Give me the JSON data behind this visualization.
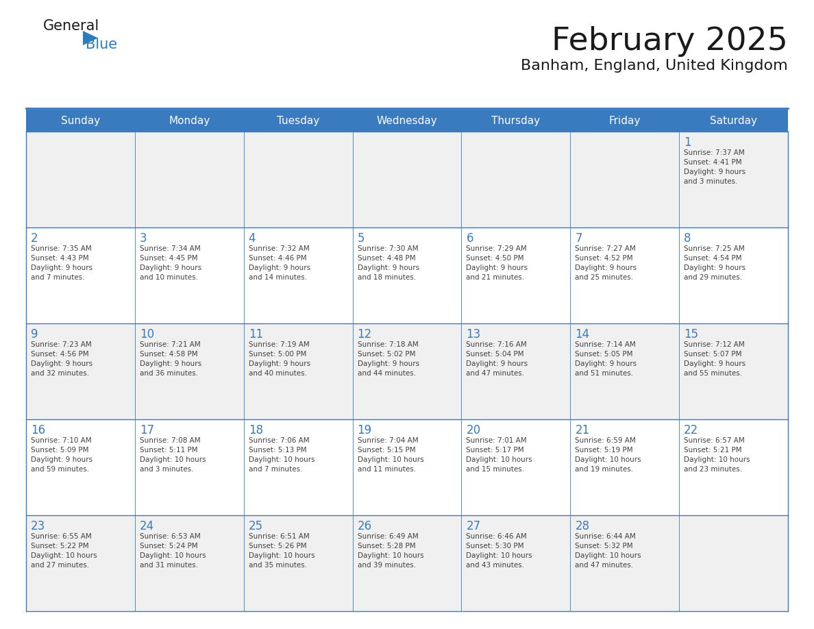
{
  "title": "February 2025",
  "subtitle": "Banham, England, United Kingdom",
  "header_bg": "#3a7abf",
  "header_text": "#ffffff",
  "cell_bg_odd": "#f0f0f0",
  "cell_bg_even": "#ffffff",
  "day_number_color": "#3a7abf",
  "cell_text_color": "#404040",
  "grid_line_color": "#3a7abf",
  "logo_text_color": "#1a1a1a",
  "logo_blue_color": "#2a7dbf",
  "days_of_week": [
    "Sunday",
    "Monday",
    "Tuesday",
    "Wednesday",
    "Thursday",
    "Friday",
    "Saturday"
  ],
  "weeks": [
    [
      {
        "day": null,
        "info": null
      },
      {
        "day": null,
        "info": null
      },
      {
        "day": null,
        "info": null
      },
      {
        "day": null,
        "info": null
      },
      {
        "day": null,
        "info": null
      },
      {
        "day": null,
        "info": null
      },
      {
        "day": 1,
        "info": "Sunrise: 7:37 AM\nSunset: 4:41 PM\nDaylight: 9 hours\nand 3 minutes."
      }
    ],
    [
      {
        "day": 2,
        "info": "Sunrise: 7:35 AM\nSunset: 4:43 PM\nDaylight: 9 hours\nand 7 minutes."
      },
      {
        "day": 3,
        "info": "Sunrise: 7:34 AM\nSunset: 4:45 PM\nDaylight: 9 hours\nand 10 minutes."
      },
      {
        "day": 4,
        "info": "Sunrise: 7:32 AM\nSunset: 4:46 PM\nDaylight: 9 hours\nand 14 minutes."
      },
      {
        "day": 5,
        "info": "Sunrise: 7:30 AM\nSunset: 4:48 PM\nDaylight: 9 hours\nand 18 minutes."
      },
      {
        "day": 6,
        "info": "Sunrise: 7:29 AM\nSunset: 4:50 PM\nDaylight: 9 hours\nand 21 minutes."
      },
      {
        "day": 7,
        "info": "Sunrise: 7:27 AM\nSunset: 4:52 PM\nDaylight: 9 hours\nand 25 minutes."
      },
      {
        "day": 8,
        "info": "Sunrise: 7:25 AM\nSunset: 4:54 PM\nDaylight: 9 hours\nand 29 minutes."
      }
    ],
    [
      {
        "day": 9,
        "info": "Sunrise: 7:23 AM\nSunset: 4:56 PM\nDaylight: 9 hours\nand 32 minutes."
      },
      {
        "day": 10,
        "info": "Sunrise: 7:21 AM\nSunset: 4:58 PM\nDaylight: 9 hours\nand 36 minutes."
      },
      {
        "day": 11,
        "info": "Sunrise: 7:19 AM\nSunset: 5:00 PM\nDaylight: 9 hours\nand 40 minutes."
      },
      {
        "day": 12,
        "info": "Sunrise: 7:18 AM\nSunset: 5:02 PM\nDaylight: 9 hours\nand 44 minutes."
      },
      {
        "day": 13,
        "info": "Sunrise: 7:16 AM\nSunset: 5:04 PM\nDaylight: 9 hours\nand 47 minutes."
      },
      {
        "day": 14,
        "info": "Sunrise: 7:14 AM\nSunset: 5:05 PM\nDaylight: 9 hours\nand 51 minutes."
      },
      {
        "day": 15,
        "info": "Sunrise: 7:12 AM\nSunset: 5:07 PM\nDaylight: 9 hours\nand 55 minutes."
      }
    ],
    [
      {
        "day": 16,
        "info": "Sunrise: 7:10 AM\nSunset: 5:09 PM\nDaylight: 9 hours\nand 59 minutes."
      },
      {
        "day": 17,
        "info": "Sunrise: 7:08 AM\nSunset: 5:11 PM\nDaylight: 10 hours\nand 3 minutes."
      },
      {
        "day": 18,
        "info": "Sunrise: 7:06 AM\nSunset: 5:13 PM\nDaylight: 10 hours\nand 7 minutes."
      },
      {
        "day": 19,
        "info": "Sunrise: 7:04 AM\nSunset: 5:15 PM\nDaylight: 10 hours\nand 11 minutes."
      },
      {
        "day": 20,
        "info": "Sunrise: 7:01 AM\nSunset: 5:17 PM\nDaylight: 10 hours\nand 15 minutes."
      },
      {
        "day": 21,
        "info": "Sunrise: 6:59 AM\nSunset: 5:19 PM\nDaylight: 10 hours\nand 19 minutes."
      },
      {
        "day": 22,
        "info": "Sunrise: 6:57 AM\nSunset: 5:21 PM\nDaylight: 10 hours\nand 23 minutes."
      }
    ],
    [
      {
        "day": 23,
        "info": "Sunrise: 6:55 AM\nSunset: 5:22 PM\nDaylight: 10 hours\nand 27 minutes."
      },
      {
        "day": 24,
        "info": "Sunrise: 6:53 AM\nSunset: 5:24 PM\nDaylight: 10 hours\nand 31 minutes."
      },
      {
        "day": 25,
        "info": "Sunrise: 6:51 AM\nSunset: 5:26 PM\nDaylight: 10 hours\nand 35 minutes."
      },
      {
        "day": 26,
        "info": "Sunrise: 6:49 AM\nSunset: 5:28 PM\nDaylight: 10 hours\nand 39 minutes."
      },
      {
        "day": 27,
        "info": "Sunrise: 6:46 AM\nSunset: 5:30 PM\nDaylight: 10 hours\nand 43 minutes."
      },
      {
        "day": 28,
        "info": "Sunrise: 6:44 AM\nSunset: 5:32 PM\nDaylight: 10 hours\nand 47 minutes."
      },
      {
        "day": null,
        "info": null
      }
    ]
  ]
}
